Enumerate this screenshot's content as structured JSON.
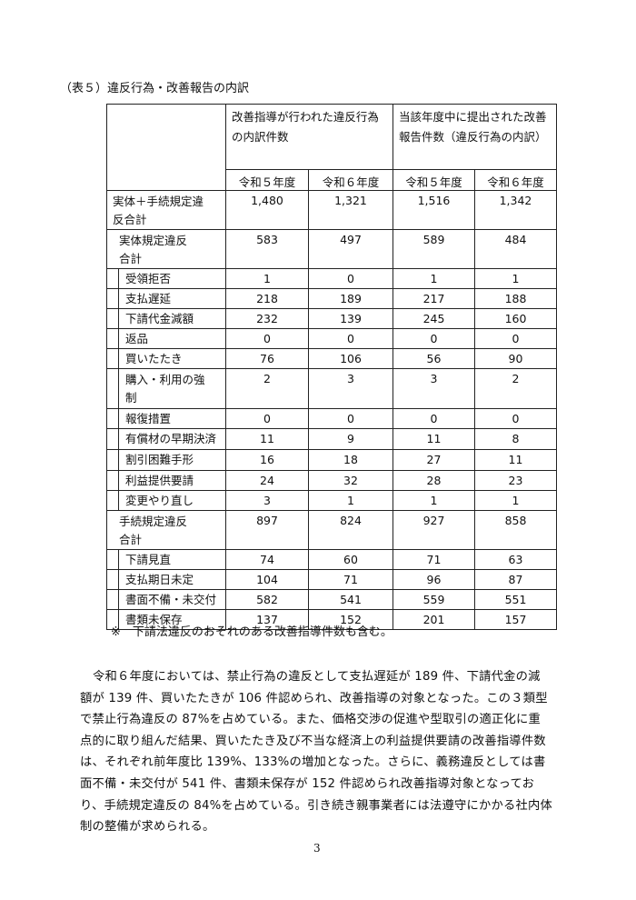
{
  "caption": "（表５）違反行為・改善報告の内訳",
  "table": {
    "group_headers": [
      "改善指導が行われた違反行為の内訳件数",
      "当該年度中に提出された改善報告件数（違反行為の内訳）"
    ],
    "year_headers": [
      "令和５年度",
      "令和６年度",
      "令和５年度",
      "令和６年度"
    ],
    "rows": [
      {
        "label": "実体＋手続規定違反合計",
        "level": 0,
        "values": [
          "1,480",
          "1,321",
          "1,516",
          "1,342"
        ]
      },
      {
        "label": "実体規定違反合計",
        "level": 1,
        "values": [
          "583",
          "497",
          "589",
          "484"
        ]
      },
      {
        "label": "受領拒否",
        "level": 2,
        "values": [
          "1",
          "0",
          "1",
          "1"
        ]
      },
      {
        "label": "支払遅延",
        "level": 2,
        "values": [
          "218",
          "189",
          "217",
          "188"
        ]
      },
      {
        "label": "下請代金減額",
        "level": 2,
        "values": [
          "232",
          "139",
          "245",
          "160"
        ]
      },
      {
        "label": "返品",
        "level": 2,
        "values": [
          "0",
          "0",
          "0",
          "0"
        ]
      },
      {
        "label": "買いたたき",
        "level": 2,
        "values": [
          "76",
          "106",
          "56",
          "90"
        ]
      },
      {
        "label": "購入・利用の強制",
        "level": 2,
        "values": [
          "2",
          "3",
          "3",
          "2"
        ]
      },
      {
        "label": "報復措置",
        "level": 2,
        "values": [
          "0",
          "0",
          "0",
          "0"
        ]
      },
      {
        "label": "有償材の早期決済",
        "level": 2,
        "values": [
          "11",
          "9",
          "11",
          "8"
        ]
      },
      {
        "label": "割引困難手形",
        "level": 2,
        "values": [
          "16",
          "18",
          "27",
          "11"
        ]
      },
      {
        "label": "利益提供要請",
        "level": 2,
        "values": [
          "24",
          "32",
          "28",
          "23"
        ]
      },
      {
        "label": "変更やり直し",
        "level": 2,
        "values": [
          "3",
          "1",
          "1",
          "1"
        ]
      },
      {
        "label": "手続規定違反合計",
        "level": 1,
        "values": [
          "897",
          "824",
          "927",
          "858"
        ]
      },
      {
        "label": "下請見直",
        "level": 2,
        "values": [
          "74",
          "60",
          "71",
          "63"
        ]
      },
      {
        "label": "支払期日未定",
        "level": 2,
        "values": [
          "104",
          "71",
          "96",
          "87"
        ]
      },
      {
        "label": "書面不備・未交付",
        "level": 2,
        "values": [
          "582",
          "541",
          "559",
          "551"
        ]
      },
      {
        "label": "書類未保存",
        "level": 2,
        "values": [
          "137",
          "152",
          "201",
          "157"
        ]
      }
    ]
  },
  "note": "※　下請法違反のおそれのある改善指導件数も含む。",
  "paragraph": "令和６年度においては、禁止行為の違反として支払遅延が 189 件、下請代金の減額が 139 件、買いたたきが 106 件認められ、改善指導の対象となった。この３類型で禁止行為違反の 87%を占めている。また、価格交渉の促進や型取引の適正化に重点的に取り組んだ結果、買いたたき及び不当な経済上の利益提供要請の改善指導件数は、それぞれ前年度比 139%、133%の増加となった。さらに、義務違反としては書面不備・未交付が 541 件、書類未保存が 152 件認められ改善指導対象となっており、手続規定違反の 84%を占めている。引き続き親事業者には法遵守にかかる社内体制の整備が求められる。",
  "page_number": "3"
}
